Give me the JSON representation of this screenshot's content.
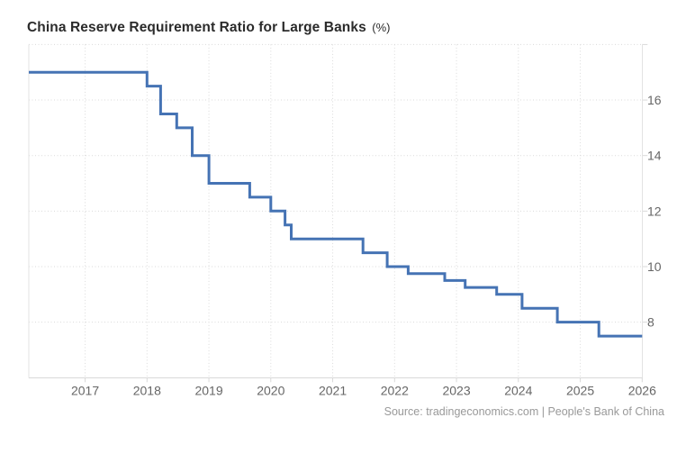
{
  "header": {
    "title": "China Reserve Requirement Ratio for Large Banks",
    "unit": "(%)"
  },
  "footer": {
    "source": "Source: tradingeconomics.com | People's Bank of China"
  },
  "chart_data": {
    "type": "line",
    "subtype": "step-after",
    "title": "China Reserve Requirement Ratio for Large Banks (%)",
    "xlabel": "",
    "ylabel": "",
    "legend": "none",
    "grid": "dotted",
    "line_color": "#4573b4",
    "line_width": 3,
    "xlim": [
      2016.09,
      2026.0
    ],
    "ylim": [
      6,
      18
    ],
    "x_tick_values": [
      2017,
      2018,
      2019,
      2020,
      2021,
      2022,
      2023,
      2024,
      2025,
      2026
    ],
    "x_tick_labels": [
      "2017",
      "2018",
      "2019",
      "2020",
      "2021",
      "2022",
      "2023",
      "2024",
      "2025",
      "2026"
    ],
    "y_tick_values": [
      8,
      10,
      12,
      14,
      16
    ],
    "y_tick_labels": [
      "8",
      "10",
      "12",
      "14",
      "16"
    ],
    "y_grid_values": [
      8,
      10,
      12,
      14,
      16,
      18
    ],
    "x_end": 2026.0,
    "series": [
      {
        "name": "China Reserve Requirement Ratio for Large Banks",
        "points": [
          [
            2016.09,
            17.0
          ],
          [
            2018.0,
            16.5
          ],
          [
            2018.22,
            15.5
          ],
          [
            2018.48,
            15.0
          ],
          [
            2018.73,
            14.0
          ],
          [
            2019.0,
            13.0
          ],
          [
            2019.66,
            12.5
          ],
          [
            2020.0,
            12.0
          ],
          [
            2020.23,
            11.5
          ],
          [
            2020.33,
            11.0
          ],
          [
            2021.49,
            10.5
          ],
          [
            2021.88,
            10.0
          ],
          [
            2022.22,
            9.75
          ],
          [
            2022.81,
            9.5
          ],
          [
            2023.14,
            9.25
          ],
          [
            2023.65,
            9.0
          ],
          [
            2024.06,
            8.5
          ],
          [
            2024.63,
            8.0
          ],
          [
            2025.3,
            7.5
          ]
        ]
      }
    ],
    "source": "Source: tradingeconomics.com | People's Bank of China"
  }
}
